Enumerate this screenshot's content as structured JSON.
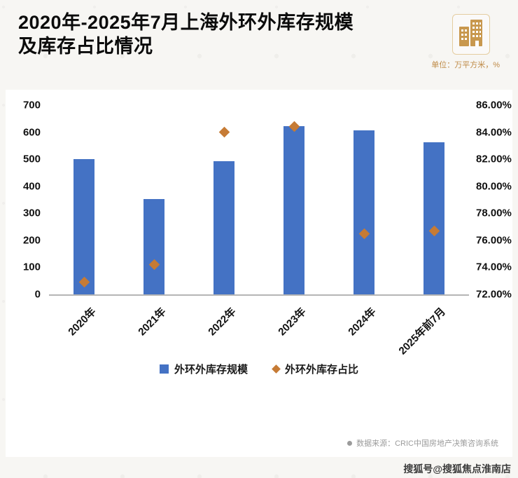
{
  "header": {
    "title_line1": "2020年-2025年7月上海外环外库存规模",
    "title_line2": "及库存占比情况",
    "unit_label": "单位：万平方米，%"
  },
  "chart_data": {
    "type": "bar",
    "title": "2020年-2025年7月上海外环外库存规模及库存占比情况",
    "categories": [
      "2020年",
      "2021年",
      "2022年",
      "2023年",
      "2024年",
      "2025年前7月"
    ],
    "series": [
      {
        "name": "外环外库存规模",
        "type": "bar",
        "axis": "left",
        "color": "#4472C4",
        "values": [
          500,
          352,
          492,
          622,
          607,
          562
        ]
      },
      {
        "name": "外环外库存占比",
        "type": "scatter",
        "marker": "diamond",
        "axis": "right",
        "color": "#C67B35",
        "values": [
          72.9,
          74.2,
          84.0,
          84.4,
          76.5,
          76.7
        ]
      }
    ],
    "left_axis": {
      "min": 0,
      "max": 700,
      "step": 100,
      "ticks": [
        "0",
        "100",
        "200",
        "300",
        "400",
        "500",
        "600",
        "700"
      ]
    },
    "right_axis": {
      "min": 72,
      "max": 86,
      "step": 2,
      "ticks": [
        "72.00%",
        "74.00%",
        "76.00%",
        "78.00%",
        "80.00%",
        "82.00%",
        "84.00%",
        "86.00%"
      ]
    },
    "legend": [
      {
        "label": "外环外库存规模",
        "marker": "square",
        "color": "#4472C4"
      },
      {
        "label": "外环外库存占比",
        "marker": "diamond",
        "color": "#C67B35"
      }
    ],
    "grid": false,
    "legend_position": "bottom"
  },
  "footer": {
    "source": "数据来源：CRIC中国房地产决策咨询系统",
    "watermark": "搜狐号@搜狐焦点淮南店"
  }
}
